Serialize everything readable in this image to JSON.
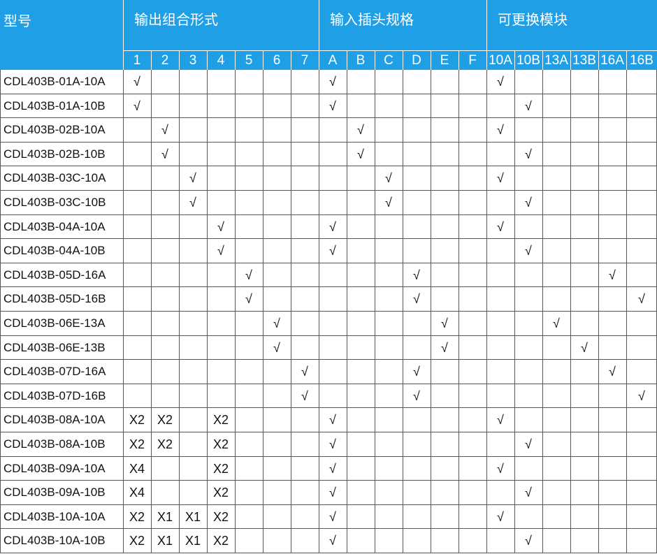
{
  "header": {
    "model_label": "型号",
    "groups": [
      {
        "title": "输出组合形式",
        "columns": [
          "1",
          "2",
          "3",
          "4",
          "5",
          "6",
          "7"
        ]
      },
      {
        "title": "输入插头规格",
        "columns": [
          "A",
          "B",
          "C",
          "D",
          "E",
          "F"
        ]
      },
      {
        "title": "可更换模块",
        "columns": [
          "10A",
          "10B",
          "13A",
          "13B",
          "16A",
          "16B"
        ]
      }
    ]
  },
  "rows": [
    {
      "model": "CDL403B-01A-10A",
      "cells": [
        "√",
        null,
        null,
        null,
        null,
        null,
        null,
        "√",
        null,
        null,
        null,
        null,
        null,
        "√",
        null,
        null,
        null,
        null,
        null
      ]
    },
    {
      "model": "CDL403B-01A-10B",
      "cells": [
        "√",
        null,
        null,
        null,
        null,
        null,
        null,
        "√",
        null,
        null,
        null,
        null,
        null,
        null,
        "√",
        null,
        null,
        null,
        null
      ]
    },
    {
      "model": "CDL403B-02B-10A",
      "cells": [
        null,
        "√",
        null,
        null,
        null,
        null,
        null,
        null,
        "√",
        null,
        null,
        null,
        null,
        "√",
        null,
        null,
        null,
        null,
        null
      ]
    },
    {
      "model": "CDL403B-02B-10B",
      "cells": [
        null,
        "√",
        null,
        null,
        null,
        null,
        null,
        null,
        "√",
        null,
        null,
        null,
        null,
        null,
        "√",
        null,
        null,
        null,
        null
      ]
    },
    {
      "model": "CDL403B-03C-10A",
      "cells": [
        null,
        null,
        "√",
        null,
        null,
        null,
        null,
        null,
        null,
        "√",
        null,
        null,
        null,
        "√",
        null,
        null,
        null,
        null,
        null
      ]
    },
    {
      "model": "CDL403B-03C-10B",
      "cells": [
        null,
        null,
        "√",
        null,
        null,
        null,
        null,
        null,
        null,
        "√",
        null,
        null,
        null,
        null,
        "√",
        null,
        null,
        null,
        null
      ]
    },
    {
      "model": "CDL403B-04A-10A",
      "cells": [
        null,
        null,
        null,
        "√",
        null,
        null,
        null,
        "√",
        null,
        null,
        null,
        null,
        null,
        "√",
        null,
        null,
        null,
        null,
        null
      ]
    },
    {
      "model": "CDL403B-04A-10B",
      "cells": [
        null,
        null,
        null,
        "√",
        null,
        null,
        null,
        "√",
        null,
        null,
        null,
        null,
        null,
        null,
        "√",
        null,
        null,
        null,
        null
      ]
    },
    {
      "model": "CDL403B-05D-16A",
      "cells": [
        null,
        null,
        null,
        null,
        "√",
        null,
        null,
        null,
        null,
        null,
        "√",
        null,
        null,
        null,
        null,
        null,
        null,
        "√",
        null
      ]
    },
    {
      "model": "CDL403B-05D-16B",
      "cells": [
        null,
        null,
        null,
        null,
        "√",
        null,
        null,
        null,
        null,
        null,
        "√",
        null,
        null,
        null,
        null,
        null,
        null,
        null,
        "√"
      ]
    },
    {
      "model": "CDL403B-06E-13A",
      "cells": [
        null,
        null,
        null,
        null,
        null,
        "√",
        null,
        null,
        null,
        null,
        null,
        "√",
        null,
        null,
        null,
        "√",
        null,
        null,
        null
      ]
    },
    {
      "model": "CDL403B-06E-13B",
      "cells": [
        null,
        null,
        null,
        null,
        null,
        "√",
        null,
        null,
        null,
        null,
        null,
        "√",
        null,
        null,
        null,
        null,
        "√",
        null,
        null
      ]
    },
    {
      "model": "CDL403B-07D-16A",
      "cells": [
        null,
        null,
        null,
        null,
        null,
        null,
        "√",
        null,
        null,
        null,
        "√",
        null,
        null,
        null,
        null,
        null,
        null,
        "√",
        null
      ]
    },
    {
      "model": "CDL403B-07D-16B",
      "cells": [
        null,
        null,
        null,
        null,
        null,
        null,
        "√",
        null,
        null,
        null,
        "√",
        null,
        null,
        null,
        null,
        null,
        null,
        null,
        "√"
      ]
    },
    {
      "model": "CDL403B-08A-10A",
      "cells": [
        "X2",
        "X2",
        null,
        "X2",
        null,
        null,
        null,
        "√",
        null,
        null,
        null,
        null,
        null,
        "√",
        null,
        null,
        null,
        null,
        null
      ]
    },
    {
      "model": "CDL403B-08A-10B",
      "cells": [
        "X2",
        "X2",
        null,
        "X2",
        null,
        null,
        null,
        "√",
        null,
        null,
        null,
        null,
        null,
        null,
        "√",
        null,
        null,
        null,
        null
      ]
    },
    {
      "model": "CDL403B-09A-10A",
      "cells": [
        "X4",
        null,
        null,
        "X2",
        null,
        null,
        null,
        "√",
        null,
        null,
        null,
        null,
        null,
        "√",
        null,
        null,
        null,
        null,
        null
      ]
    },
    {
      "model": "CDL403B-09A-10B",
      "cells": [
        "X4",
        null,
        null,
        "X2",
        null,
        null,
        null,
        "√",
        null,
        null,
        null,
        null,
        null,
        null,
        "√",
        null,
        null,
        null,
        null
      ]
    },
    {
      "model": "CDL403B-10A-10A",
      "cells": [
        "X2",
        "X1",
        "X1",
        "X2",
        null,
        null,
        null,
        "√",
        null,
        null,
        null,
        null,
        null,
        "√",
        null,
        null,
        null,
        null,
        null
      ]
    },
    {
      "model": "CDL403B-10A-10B",
      "cells": [
        "X2",
        "X1",
        "X1",
        "X2",
        null,
        null,
        null,
        "√",
        null,
        null,
        null,
        null,
        null,
        null,
        "√",
        null,
        null,
        null,
        null
      ]
    }
  ]
}
